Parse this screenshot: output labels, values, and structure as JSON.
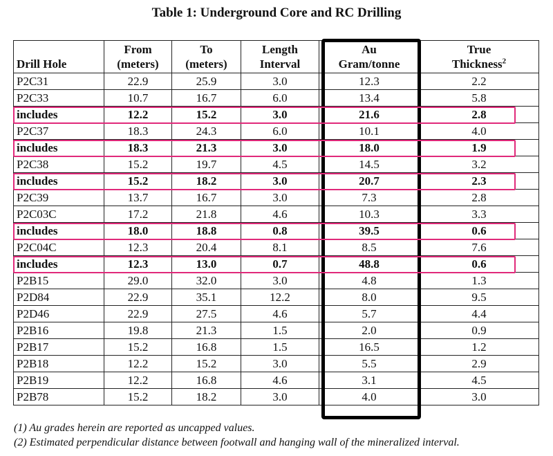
{
  "title": "Table 1: Underground Core and RC Drilling",
  "headers": {
    "drill_hole": "Drill Hole",
    "from_1": "From",
    "from_2": "(meters)",
    "to_1": "To",
    "to_2": "(meters)",
    "length_1": "Length",
    "length_2": "Interval",
    "au_1": "Au",
    "au_2": "Gram/tonne",
    "true_1": "True",
    "true_2": "Thickness",
    "true_sup": "2"
  },
  "rows": [
    {
      "hole": "P2C31",
      "from": "22.9",
      "to": "25.9",
      "length": "3.0",
      "au": "12.3",
      "thickness": "2.2",
      "highlight": false
    },
    {
      "hole": "P2C33",
      "from": "10.7",
      "to": "16.7",
      "length": "6.0",
      "au": "13.4",
      "thickness": "5.8",
      "highlight": false
    },
    {
      "hole": "includes",
      "from": "12.2",
      "to": "15.2",
      "length": "3.0",
      "au": "21.6",
      "thickness": "2.8",
      "highlight": true
    },
    {
      "hole": "P2C37",
      "from": "18.3",
      "to": "24.3",
      "length": "6.0",
      "au": "10.1",
      "thickness": "4.0",
      "highlight": false
    },
    {
      "hole": "includes",
      "from": "18.3",
      "to": "21.3",
      "length": "3.0",
      "au": "18.0",
      "thickness": "1.9",
      "highlight": true
    },
    {
      "hole": "P2C38",
      "from": "15.2",
      "to": "19.7",
      "length": "4.5",
      "au": "14.5",
      "thickness": "3.2",
      "highlight": false
    },
    {
      "hole": "includes",
      "from": "15.2",
      "to": "18.2",
      "length": "3.0",
      "au": "20.7",
      "thickness": "2.3",
      "highlight": true
    },
    {
      "hole": "P2C39",
      "from": "13.7",
      "to": "16.7",
      "length": "3.0",
      "au": "7.3",
      "thickness": "2.8",
      "highlight": false
    },
    {
      "hole": "P2C03C",
      "from": "17.2",
      "to": "21.8",
      "length": "4.6",
      "au": "10.3",
      "thickness": "3.3",
      "highlight": false
    },
    {
      "hole": "includes",
      "from": "18.0",
      "to": "18.8",
      "length": "0.8",
      "au": "39.5",
      "thickness": "0.6",
      "highlight": true
    },
    {
      "hole": "P2C04C",
      "from": "12.3",
      "to": "20.4",
      "length": "8.1",
      "au": "8.5",
      "thickness": "7.6",
      "highlight": false
    },
    {
      "hole": "includes",
      "from": "12.3",
      "to": "13.0",
      "length": "0.7",
      "au": "48.8",
      "thickness": "0.6",
      "highlight": true
    },
    {
      "hole": "P2B15",
      "from": "29.0",
      "to": "32.0",
      "length": "3.0",
      "au": "4.8",
      "thickness": "1.3",
      "highlight": false
    },
    {
      "hole": "P2D84",
      "from": "22.9",
      "to": "35.1",
      "length": "12.2",
      "au": "8.0",
      "thickness": "9.5",
      "highlight": false
    },
    {
      "hole": "P2D46",
      "from": "22.9",
      "to": "27.5",
      "length": "4.6",
      "au": "5.7",
      "thickness": "4.4",
      "highlight": false
    },
    {
      "hole": "P2B16",
      "from": "19.8",
      "to": "21.3",
      "length": "1.5",
      "au": "2.0",
      "thickness": "0.9",
      "highlight": false
    },
    {
      "hole": "P2B17",
      "from": "15.2",
      "to": "16.8",
      "length": "1.5",
      "au": "16.5",
      "thickness": "1.2",
      "highlight": false
    },
    {
      "hole": "P2B18",
      "from": "12.2",
      "to": "15.2",
      "length": "3.0",
      "au": "5.5",
      "thickness": "2.9",
      "highlight": false
    },
    {
      "hole": "P2B19",
      "from": "12.2",
      "to": "16.8",
      "length": "4.6",
      "au": "3.1",
      "thickness": "4.5",
      "highlight": false
    },
    {
      "hole": "P2B78",
      "from": "15.2",
      "to": "18.2",
      "length": "3.0",
      "au": "4.0",
      "thickness": "3.0",
      "highlight": false
    }
  ],
  "footnotes": [
    "(1) Au grades herein are reported as uncapped values.",
    "(2) Estimated perpendicular distance between footwall and hanging wall of the mineralized interval."
  ],
  "colors": {
    "highlight_border": "#e0297a",
    "au_box_border": "#000000"
  }
}
